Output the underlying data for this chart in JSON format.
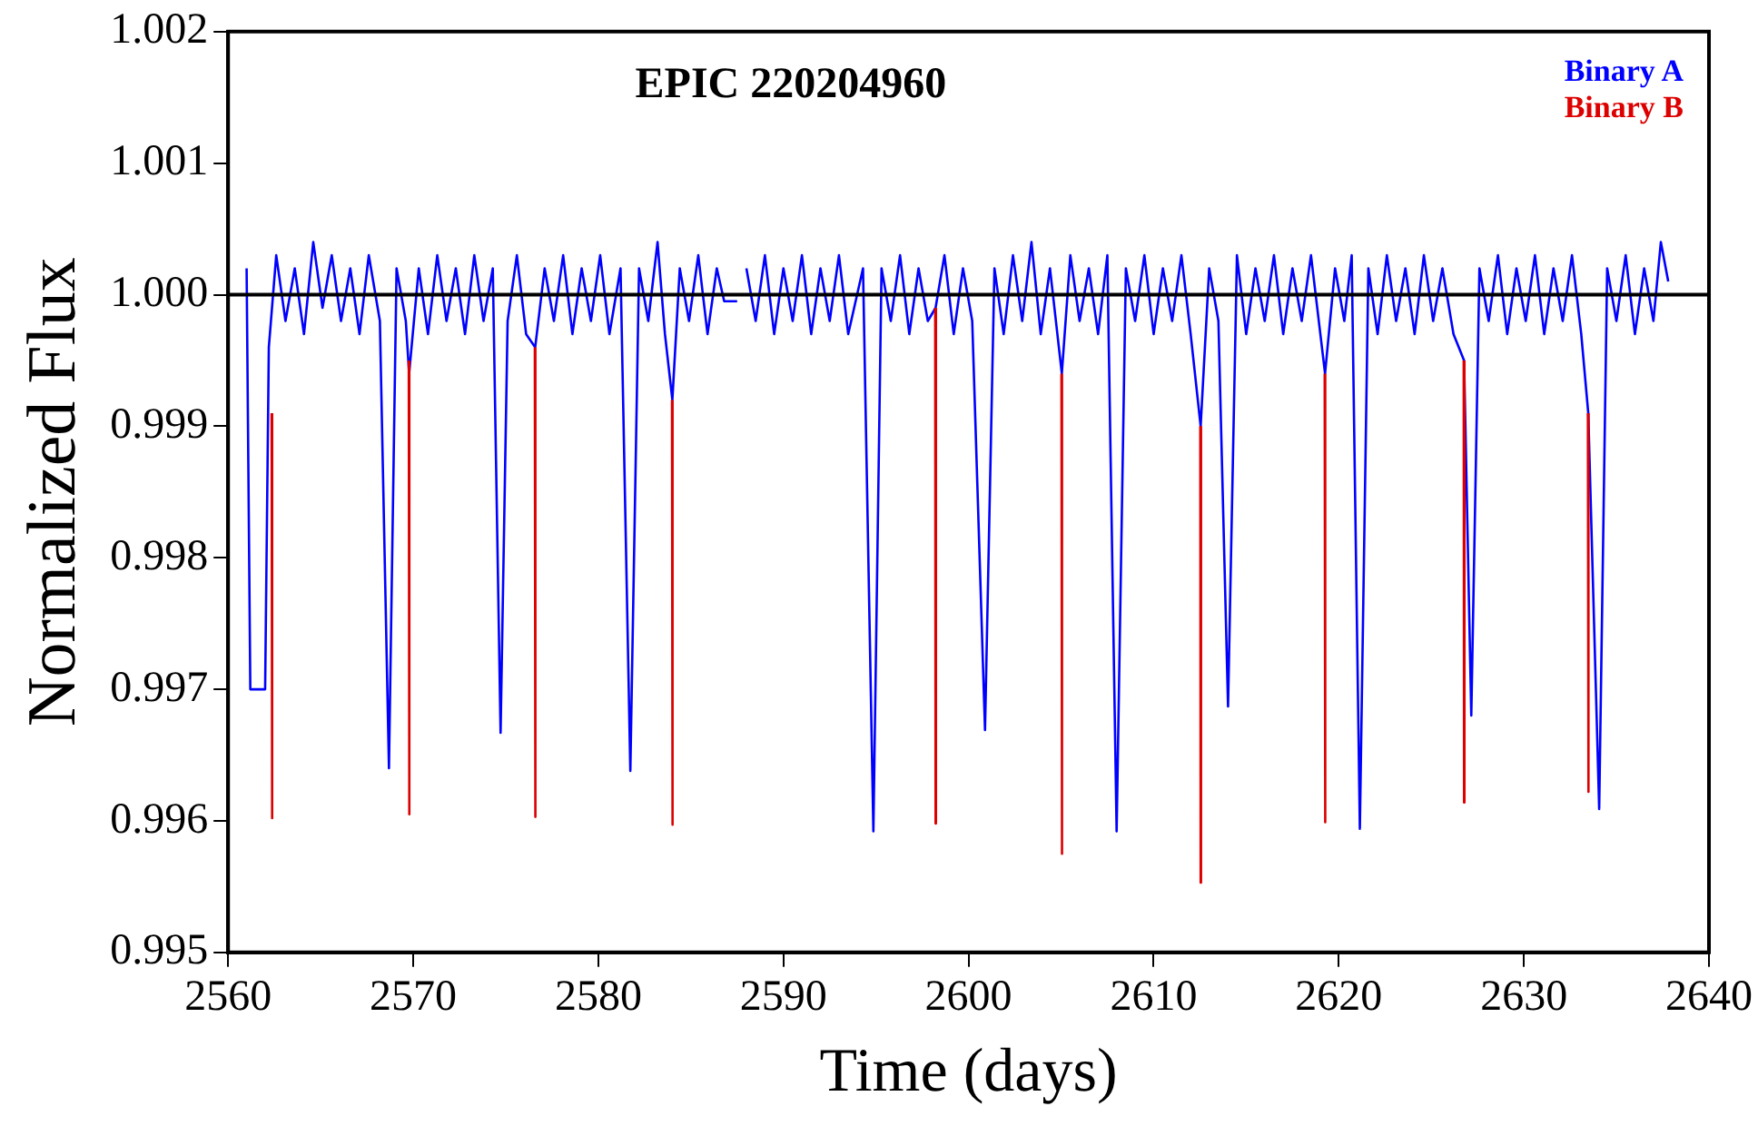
{
  "chart_data": {
    "type": "line",
    "title": "EPIC 220204960",
    "xlabel": "Time (days)",
    "ylabel": "Normalized Flux",
    "xlim": [
      2560,
      2640
    ],
    "xticks": [
      2560,
      2570,
      2580,
      2590,
      2600,
      2610,
      2620,
      2630,
      2640
    ],
    "ylim": [
      0.995,
      1.002
    ],
    "yticks": [
      0.995,
      0.996,
      0.997,
      0.998,
      0.999,
      {
        "value": 1,
        "label": "1.000"
      },
      1.001,
      1.002
    ],
    "grid": false,
    "legend": "top right",
    "marker": "none",
    "line_style": "solid",
    "ref_lines": [
      {
        "axis": "y",
        "value": 1,
        "color": "#000000"
      }
    ],
    "series": [
      {
        "name": "Binary A",
        "color": "#0000ff",
        "x": [
          2561.0,
          2561.2,
          2562.0,
          2562.2,
          2562.6,
          2563.1,
          2563.6,
          2564.1,
          2564.6,
          2565.1,
          2565.6,
          2566.1,
          2566.6,
          2567.1,
          2567.6,
          2568.2,
          2568.69,
          2569.1,
          2569.6,
          2569.78,
          2570.3,
          2570.8,
          2571.3,
          2571.8,
          2572.3,
          2572.8,
          2573.3,
          2573.8,
          2574.3,
          2574.72,
          2575.1,
          2575.6,
          2576.1,
          2576.59,
          2577.1,
          2577.6,
          2578.1,
          2578.6,
          2579.1,
          2579.6,
          2580.1,
          2580.6,
          2581.2,
          2581.73,
          2582.2,
          2582.7,
          2583.2,
          2583.6,
          2584.0,
          2584.4,
          2584.9,
          2585.4,
          2585.9,
          2586.4,
          2586.8,
          2587.5,
          2587.8,
          2588.0,
          2588.5,
          2589.0,
          2589.5,
          2590.0,
          2590.5,
          2591.0,
          2591.5,
          2592.0,
          2592.5,
          2593.0,
          2593.5,
          2594.3,
          2594.86,
          2595.3,
          2595.8,
          2596.3,
          2596.8,
          2597.3,
          2597.8,
          2598.22,
          2598.7,
          2599.2,
          2599.7,
          2600.2,
          2600.89,
          2601.4,
          2601.9,
          2602.4,
          2602.9,
          2603.4,
          2603.9,
          2604.4,
          2605.04,
          2605.5,
          2606.0,
          2606.5,
          2607.0,
          2607.5,
          2608.0,
          2608.5,
          2609.0,
          2609.5,
          2610.0,
          2610.5,
          2611.0,
          2611.5,
          2612.0,
          2612.54,
          2613.0,
          2613.5,
          2614.02,
          2614.5,
          2615.0,
          2615.5,
          2616.0,
          2616.5,
          2617.0,
          2617.5,
          2618.0,
          2618.5,
          2619.26,
          2619.8,
          2620.3,
          2620.7,
          2621.14,
          2621.6,
          2622.1,
          2622.6,
          2623.1,
          2623.6,
          2624.1,
          2624.6,
          2625.1,
          2625.6,
          2626.2,
          2626.77,
          2627.16,
          2627.6,
          2628.1,
          2628.6,
          2629.1,
          2629.6,
          2630.1,
          2630.6,
          2631.1,
          2631.6,
          2632.1,
          2632.6,
          2633.1,
          2633.48,
          2634.07,
          2634.5,
          2635.0,
          2635.5,
          2636.0,
          2636.5,
          2637.0,
          2637.4,
          2637.8
        ],
        "values": [
          1.0002,
          0.997,
          0.997,
          0.9996,
          1.0003,
          0.9998,
          1.0002,
          0.9997,
          1.0004,
          0.9999,
          1.0003,
          0.9998,
          1.0002,
          0.9997,
          1.0003,
          0.9998,
          0.9964,
          1.0002,
          0.9998,
          0.9994,
          1.0002,
          0.9997,
          1.0003,
          0.9998,
          1.0002,
          0.9997,
          1.0003,
          0.9998,
          1.0002,
          0.99667,
          0.9998,
          1.0003,
          0.9997,
          0.9996,
          1.0002,
          0.9998,
          1.0003,
          0.9997,
          1.0002,
          0.9998,
          1.0003,
          0.9997,
          1.0002,
          0.99638,
          1.0002,
          0.9998,
          1.0004,
          0.9997,
          0.9992,
          1.0002,
          0.9998,
          1.0003,
          0.9997,
          1.0002,
          0.99995,
          0.99995,
          null,
          1.0002,
          0.9998,
          1.0003,
          0.9997,
          1.0002,
          0.9998,
          1.0003,
          0.9997,
          1.0002,
          0.9998,
          1.0003,
          0.9997,
          1.0002,
          0.99592,
          1.0002,
          0.9998,
          1.0003,
          0.9997,
          1.0002,
          0.9998,
          0.9999,
          1.0003,
          0.9997,
          1.0002,
          0.9998,
          0.99669,
          1.0002,
          0.9997,
          1.0003,
          0.9998,
          1.0004,
          0.9997,
          1.0002,
          0.9994,
          1.0003,
          0.9998,
          1.0002,
          0.9997,
          1.0003,
          0.99592,
          1.0002,
          0.9998,
          1.0003,
          0.9997,
          1.0002,
          0.9998,
          1.0003,
          0.9997,
          0.999,
          1.0002,
          0.9998,
          0.99687,
          1.0003,
          0.9997,
          1.0002,
          0.9998,
          1.0003,
          0.9997,
          1.0002,
          0.9998,
          1.0003,
          0.9994,
          1.0002,
          0.9998,
          1.0003,
          0.99594,
          1.0002,
          0.9997,
          1.0003,
          0.9998,
          1.0002,
          0.9997,
          1.0003,
          0.9998,
          1.0002,
          0.9997,
          0.9995,
          0.9968,
          1.0002,
          0.9998,
          1.0003,
          0.9997,
          1.0002,
          0.9998,
          1.0003,
          0.9997,
          1.0002,
          0.9998,
          1.0003,
          0.9997,
          0.9991,
          0.99609,
          1.0002,
          0.9998,
          1.0003,
          0.9997,
          1.0002,
          0.9998,
          1.0004,
          1.0001
        ]
      },
      {
        "name": "Binary B",
        "color": "#dd0000",
        "x": [
          2562.35,
          2562.37,
          2562.39,
          2562.5,
          2569.76,
          2569.78,
          2569.8,
          2569.9,
          2576.57,
          2576.59,
          2576.61,
          2576.7,
          2583.98,
          2584.0,
          2584.02,
          2584.1,
          2598.2,
          2598.22,
          2598.24,
          2598.3,
          2605.02,
          2605.04,
          2605.06,
          2605.2,
          2612.52,
          2612.54,
          2612.56,
          2612.7,
          2619.24,
          2619.26,
          2619.28,
          2619.4,
          2626.75,
          2626.77,
          2626.79,
          2626.9,
          2633.46,
          2633.48,
          2633.5
        ],
        "values": [
          0.9991,
          0.99602,
          0.9991,
          null,
          0.9995,
          0.99605,
          0.9995,
          null,
          0.9996,
          0.99603,
          0.9996,
          null,
          0.9992,
          0.99597,
          0.9992,
          null,
          0.9999,
          0.99598,
          0.9999,
          null,
          0.9994,
          0.99575,
          0.9994,
          null,
          0.999,
          0.99553,
          0.999,
          null,
          0.9994,
          0.99599,
          0.9994,
          null,
          0.9995,
          0.99614,
          0.9995,
          null,
          0.9991,
          0.99622,
          0.9991
        ]
      }
    ]
  }
}
